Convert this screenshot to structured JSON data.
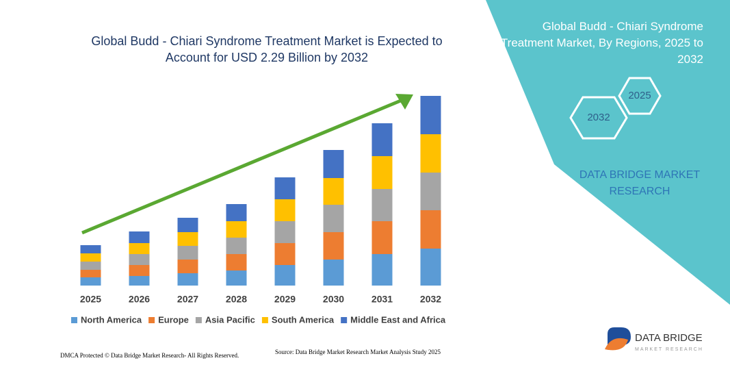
{
  "chart_data": {
    "type": "bar",
    "stacked": true,
    "title": "Global Budd - Chiari Syndrome Treatment Market is Expected to Account for USD 2.29 Billion by 2032",
    "categories": [
      "2025",
      "2026",
      "2027",
      "2028",
      "2029",
      "2030",
      "2031",
      "2032"
    ],
    "series": [
      {
        "name": "North America",
        "color": "#5b9bd5",
        "values": [
          12,
          14,
          18,
          22,
          30,
          38,
          46,
          54
        ]
      },
      {
        "name": "Europe",
        "color": "#ed7d31",
        "values": [
          11,
          16,
          20,
          24,
          32,
          40,
          48,
          56
        ]
      },
      {
        "name": "Asia Pacific",
        "color": "#a5a5a5",
        "values": [
          12,
          16,
          20,
          24,
          32,
          40,
          47,
          55
        ]
      },
      {
        "name": "South America",
        "color": "#ffc000",
        "values": [
          12,
          16,
          20,
          24,
          32,
          39,
          48,
          56
        ]
      },
      {
        "name": "Middle East and Africa",
        "color": "#4472c4",
        "values": [
          12,
          17,
          21,
          25,
          32,
          41,
          48,
          56
        ]
      }
    ],
    "ylim": [
      0,
      280
    ]
  },
  "panel": {
    "title": "Global Budd - Chiari Syndrome Treatment Market, By Regions, 2025 to 2032",
    "hexagons": [
      "2025",
      "2032"
    ],
    "brand": "DATA BRIDGE MARKET RESEARCH"
  },
  "footer": {
    "dmca": "DMCA Protected © Data Bridge Market Research- All Rights Reserved.",
    "source": "Source: Data Bridge Market Research Market Analysis Study 2025"
  },
  "logo": {
    "name": "DATA BRIDGE",
    "tagline": "MARKET RESEARCH"
  }
}
